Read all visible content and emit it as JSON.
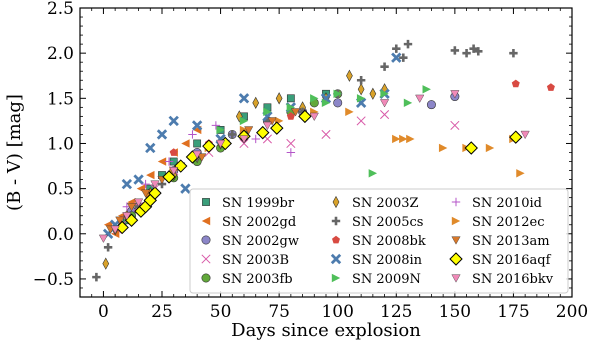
{
  "chart_data": {
    "type": "scatter",
    "xlabel": "Days since explosion",
    "ylabel": "(B - V) [mag]",
    "xlim": [
      -10,
      200
    ],
    "ylim": [
      -0.7,
      2.5
    ],
    "xticks": [
      0,
      25,
      50,
      75,
      100,
      125,
      150,
      175,
      200
    ],
    "yticks": [
      -0.5,
      0.0,
      0.5,
      1.0,
      1.5,
      2.0,
      2.5
    ],
    "x_tick_labels": [
      "0",
      "25",
      "50",
      "75",
      "100",
      "125",
      "150",
      "175",
      "200"
    ],
    "y_tick_labels": [
      "−0.5",
      "0.0",
      "0.5",
      "1.0",
      "1.5",
      "2.0",
      "2.5"
    ],
    "grid": false,
    "legend_position": "lower-right",
    "legend_columns": 3,
    "series": [
      {
        "name": "SN 1999br",
        "marker": "square",
        "color": "#3a9e7a",
        "x": [
          10,
          15,
          20,
          25,
          30,
          40,
          50,
          60,
          70,
          80,
          95
        ],
        "y": [
          0.15,
          0.3,
          0.5,
          0.65,
          0.8,
          1.0,
          1.15,
          1.3,
          1.4,
          1.5,
          1.55
        ]
      },
      {
        "name": "SN 2002gd",
        "marker": "triangle-left",
        "color": "#e07020",
        "x": [
          2,
          5,
          8,
          12,
          16,
          20,
          25,
          30,
          35,
          40
        ],
        "y": [
          0.1,
          0.0,
          0.2,
          0.35,
          0.5,
          0.65,
          0.8,
          0.9,
          1.0,
          1.15
        ]
      },
      {
        "name": "SN 2002gw",
        "marker": "circle",
        "color": "#8c86c8",
        "x": [
          12,
          20,
          30,
          40,
          55,
          70,
          85,
          100,
          140,
          150
        ],
        "y": [
          0.25,
          0.45,
          0.7,
          0.9,
          1.1,
          1.25,
          1.35,
          1.45,
          1.43,
          1.52
        ]
      },
      {
        "name": "SN 2003B",
        "marker": "x",
        "color": "#d85aa8",
        "x": [
          6,
          10,
          15,
          22,
          30,
          45,
          60,
          70,
          80,
          95,
          110,
          120,
          150
        ],
        "y": [
          0.05,
          0.15,
          0.3,
          0.5,
          0.7,
          0.9,
          1.0,
          1.05,
          1.0,
          1.1,
          1.25,
          1.32,
          1.2
        ]
      },
      {
        "name": "SN 2003fb",
        "marker": "circle",
        "color": "#62a83a",
        "x": [
          12,
          20,
          30,
          40,
          50,
          60,
          70,
          80,
          90,
          100
        ],
        "y": [
          0.2,
          0.4,
          0.62,
          0.8,
          0.95,
          1.1,
          1.25,
          1.35,
          1.45,
          1.55
        ]
      },
      {
        "name": "SN 2003Z",
        "marker": "diamond-thin",
        "color": "#d9a22a",
        "x": [
          1,
          5,
          10,
          20,
          30,
          40,
          50,
          58,
          65,
          75,
          85,
          95,
          105,
          110,
          115,
          120
        ],
        "y": [
          -0.33,
          0.05,
          0.2,
          0.45,
          0.65,
          0.85,
          1.0,
          1.3,
          1.45,
          1.5,
          1.4,
          1.5,
          1.75,
          1.6,
          1.55,
          1.6
        ]
      },
      {
        "name": "SN 2005cs",
        "marker": "plus",
        "color": "#666666",
        "x": [
          -3,
          2,
          8,
          15,
          25,
          40,
          55,
          70,
          85,
          100,
          110,
          120,
          125,
          128,
          130,
          150,
          155,
          158,
          160,
          175
        ],
        "y": [
          -0.48,
          -0.15,
          0.1,
          0.3,
          0.55,
          0.85,
          1.1,
          1.25,
          1.35,
          1.55,
          1.7,
          1.85,
          2.05,
          1.95,
          2.1,
          2.03,
          2.0,
          2.05,
          2.02,
          2.0
        ]
      },
      {
        "name": "SN 2008bk",
        "marker": "pentagon",
        "color": "#d84a42",
        "x": [
          30,
          45,
          80,
          176,
          191
        ],
        "y": [
          0.9,
          1.0,
          1.3,
          1.66,
          1.62
        ]
      },
      {
        "name": "SN 2008in",
        "marker": "x-thick",
        "color": "#4d7cae",
        "x": [
          2,
          5,
          10,
          15,
          20,
          25,
          30,
          35,
          40,
          50,
          60,
          70,
          80,
          95,
          110,
          120,
          125
        ],
        "y": [
          0.0,
          0.1,
          0.55,
          0.6,
          0.95,
          1.1,
          1.25,
          0.5,
          1.2,
          1.05,
          1.5,
          1.3,
          1.4,
          1.5,
          1.45,
          1.55,
          1.95
        ]
      },
      {
        "name": "SN 2009N",
        "marker": "triangle-right",
        "color": "#4fbf5a",
        "x": [
          50,
          60,
          70,
          80,
          90,
          95,
          100,
          110,
          115,
          120,
          130,
          138
        ],
        "y": [
          1.15,
          1.25,
          1.35,
          1.4,
          1.5,
          1.45,
          1.55,
          1.5,
          0.67,
          1.55,
          1.45,
          1.6
        ]
      },
      {
        "name": "SN 2010id",
        "marker": "plus-thin",
        "color": "#b455c8",
        "x": [
          10,
          18,
          28,
          38,
          48,
          65,
          80
        ],
        "y": [
          0.3,
          0.55,
          0.8,
          1.1,
          1.2,
          1.05,
          0.9
        ]
      },
      {
        "name": "SN 2012ec",
        "marker": "triangle-right",
        "color": "#e08a2a",
        "x": [
          20,
          30,
          45,
          60,
          75,
          90,
          105,
          125,
          128,
          131,
          145,
          155,
          165,
          175,
          178
        ],
        "y": [
          0.45,
          0.7,
          0.95,
          1.15,
          1.25,
          1.35,
          1.35,
          1.05,
          1.05,
          1.05,
          0.95,
          0.95,
          0.95,
          1.05,
          0.67
        ]
      },
      {
        "name": "SN 2013am",
        "marker": "triangle-down",
        "color": "#d8782a",
        "x": [
          3,
          7,
          12,
          18,
          25,
          33,
          42,
          52,
          62,
          72,
          82
        ],
        "y": [
          0.05,
          0.15,
          0.3,
          0.45,
          0.6,
          0.75,
          0.85,
          1.0,
          1.15,
          1.25,
          1.35
        ]
      },
      {
        "name": "SN 2016aqf",
        "marker": "diamond",
        "color": "#ffff00",
        "x": [
          8,
          12,
          16,
          18,
          20,
          22,
          28,
          33,
          38,
          45,
          52,
          60,
          68,
          74,
          86,
          157,
          176
        ],
        "y": [
          0.07,
          0.15,
          0.25,
          0.3,
          0.37,
          0.45,
          0.63,
          0.75,
          0.85,
          0.97,
          1.0,
          1.08,
          1.12,
          1.17,
          1.3,
          0.95,
          1.07
        ]
      },
      {
        "name": "SN 2016bkv",
        "marker": "triangle-down",
        "color": "#f08ab8",
        "x": [
          0,
          5,
          10,
          15,
          22,
          30,
          40,
          50,
          60,
          70,
          90,
          120,
          135,
          150,
          180
        ],
        "y": [
          -0.05,
          0.05,
          0.2,
          0.35,
          0.55,
          0.7,
          0.88,
          1.0,
          1.05,
          1.2,
          1.3,
          1.45,
          1.5,
          1.55,
          1.1
        ]
      }
    ]
  }
}
